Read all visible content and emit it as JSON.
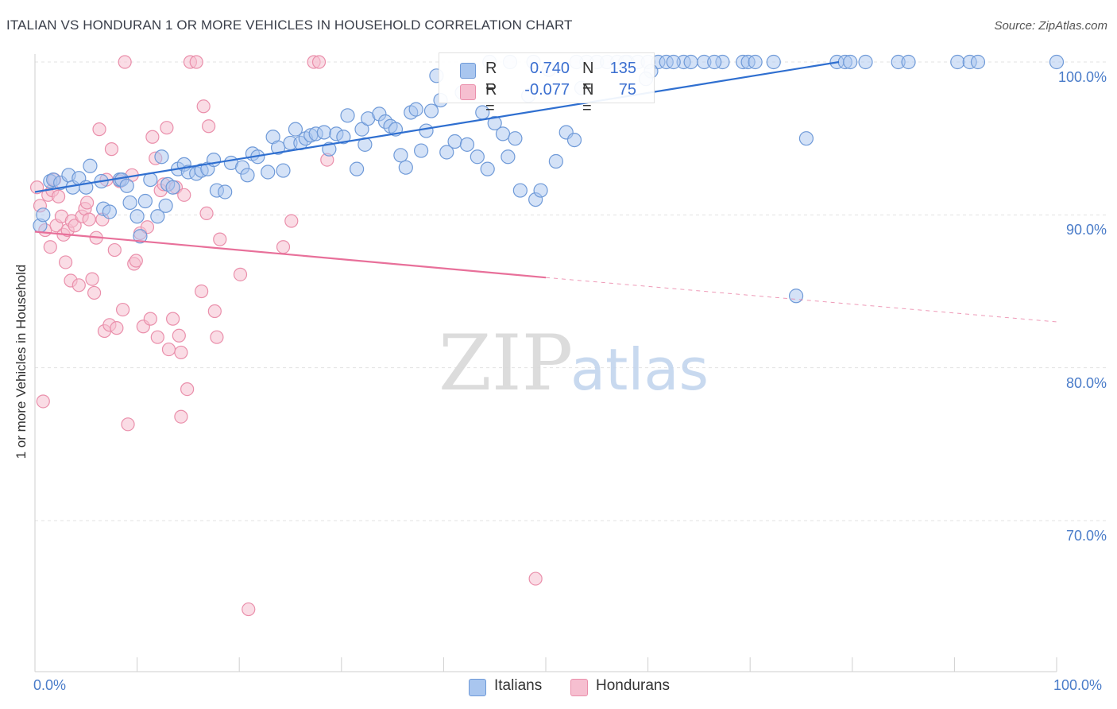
{
  "header": {
    "title": "ITALIAN VS HONDURAN 1 OR MORE VEHICLES IN HOUSEHOLD CORRELATION CHART",
    "source": "Source: ZipAtlas.com"
  },
  "watermark": {
    "zip": "ZIP",
    "atlas": "atlas"
  },
  "colors": {
    "italian_fill": "#a9c6ef",
    "italian_stroke": "#6f9ad8",
    "italian_line": "#2f6fd0",
    "honduran_fill": "#f6bfd0",
    "honduran_stroke": "#ea8fab",
    "honduran_line": "#e8709a",
    "grid": "#e3e3e3",
    "axis_text": "#4a7cc9"
  },
  "stats": {
    "italian": {
      "r_label": "R =",
      "r_value": "0.740",
      "n_label": "N =",
      "n_value": "135"
    },
    "honduran": {
      "r_label": "R =",
      "r_value": "-0.077",
      "n_label": "N =",
      "n_value": "75"
    }
  },
  "legend": {
    "italians": "Italians",
    "hondurans": "Hondurans"
  },
  "chart_data": {
    "type": "scatter",
    "title": "ITALIAN VS HONDURAN 1 OR MORE VEHICLES IN HOUSEHOLD CORRELATION CHART",
    "xlabel": "",
    "ylabel": "1 or more Vehicles in Household",
    "xlim": [
      0,
      100
    ],
    "ylim": [
      61,
      101.5
    ],
    "x_tick_labels": [
      "0.0%",
      "100.0%"
    ],
    "y_ticks": [
      70,
      80,
      90,
      100
    ],
    "y_tick_labels": [
      "70.0%",
      "80.0%",
      "90.0%",
      "100.0%"
    ],
    "grid": true,
    "legend_position": "bottom-center",
    "series": [
      {
        "name": "Italians",
        "trend": {
          "x": [
            0,
            78.7
          ],
          "y": [
            91.5,
            100.0
          ]
        },
        "points": [
          [
            0.5,
            89.3
          ],
          [
            0.8,
            90.0
          ],
          [
            1.5,
            92.2
          ],
          [
            1.8,
            92.3
          ],
          [
            2.5,
            92.1
          ],
          [
            3.3,
            92.6
          ],
          [
            3.7,
            91.8
          ],
          [
            4.3,
            92.4
          ],
          [
            5.0,
            91.8
          ],
          [
            5.4,
            93.2
          ],
          [
            6.5,
            92.2
          ],
          [
            6.7,
            90.4
          ],
          [
            7.3,
            90.2
          ],
          [
            8.3,
            92.3
          ],
          [
            8.5,
            92.3
          ],
          [
            9.0,
            91.9
          ],
          [
            9.3,
            90.8
          ],
          [
            10.0,
            89.9
          ],
          [
            10.3,
            88.6
          ],
          [
            10.8,
            90.9
          ],
          [
            11.3,
            92.3
          ],
          [
            12.0,
            89.9
          ],
          [
            12.4,
            93.8
          ],
          [
            12.8,
            90.6
          ],
          [
            13.0,
            92.0
          ],
          [
            13.5,
            91.8
          ],
          [
            14.0,
            93.0
          ],
          [
            14.6,
            93.3
          ],
          [
            15.0,
            92.8
          ],
          [
            15.8,
            92.7
          ],
          [
            16.3,
            92.9
          ],
          [
            16.9,
            93.0
          ],
          [
            17.5,
            93.6
          ],
          [
            17.8,
            91.6
          ],
          [
            18.6,
            91.5
          ],
          [
            19.2,
            93.4
          ],
          [
            20.3,
            93.1
          ],
          [
            20.8,
            92.6
          ],
          [
            21.3,
            94.0
          ],
          [
            21.8,
            93.8
          ],
          [
            22.8,
            92.8
          ],
          [
            23.3,
            95.1
          ],
          [
            23.8,
            94.4
          ],
          [
            24.3,
            92.9
          ],
          [
            25.0,
            94.7
          ],
          [
            25.5,
            95.6
          ],
          [
            26.0,
            94.7
          ],
          [
            26.5,
            95.0
          ],
          [
            27.0,
            95.2
          ],
          [
            27.5,
            95.3
          ],
          [
            28.3,
            95.4
          ],
          [
            28.8,
            94.3
          ],
          [
            29.5,
            95.3
          ],
          [
            30.2,
            95.1
          ],
          [
            30.6,
            96.5
          ],
          [
            31.5,
            93.0
          ],
          [
            32.0,
            95.6
          ],
          [
            32.3,
            94.6
          ],
          [
            32.6,
            96.3
          ],
          [
            33.7,
            96.6
          ],
          [
            34.3,
            96.1
          ],
          [
            34.8,
            95.8
          ],
          [
            35.3,
            95.6
          ],
          [
            35.8,
            93.9
          ],
          [
            36.3,
            93.1
          ],
          [
            36.8,
            96.7
          ],
          [
            37.3,
            96.9
          ],
          [
            37.8,
            94.2
          ],
          [
            38.3,
            95.5
          ],
          [
            38.8,
            96.8
          ],
          [
            39.3,
            99.1
          ],
          [
            39.7,
            97.5
          ],
          [
            40.3,
            94.1
          ],
          [
            41.1,
            94.8
          ],
          [
            41.8,
            98.0
          ],
          [
            42.3,
            94.6
          ],
          [
            43.3,
            93.8
          ],
          [
            43.8,
            96.7
          ],
          [
            44.3,
            93.0
          ],
          [
            45.0,
            96.0
          ],
          [
            45.8,
            95.3
          ],
          [
            46.3,
            93.8
          ],
          [
            47.0,
            95.0
          ],
          [
            47.5,
            91.6
          ],
          [
            48.3,
            97.8
          ],
          [
            48.8,
            100.0
          ],
          [
            49.0,
            91.0
          ],
          [
            49.5,
            91.6
          ],
          [
            50.3,
            99.5
          ],
          [
            51.0,
            93.5
          ],
          [
            52.0,
            95.4
          ],
          [
            52.8,
            94.9
          ],
          [
            53.5,
            98.3
          ],
          [
            54.0,
            100.0
          ],
          [
            55.0,
            100.0
          ],
          [
            56.0,
            100.0
          ],
          [
            57.0,
            100.0
          ],
          [
            58.0,
            100.0
          ],
          [
            59.0,
            100.0
          ],
          [
            60.0,
            100.0
          ],
          [
            61.0,
            100.0
          ],
          [
            61.8,
            100.0
          ],
          [
            63.5,
            100.0
          ],
          [
            64.2,
            100.0
          ],
          [
            65.5,
            100.0
          ],
          [
            67.3,
            100.0
          ],
          [
            69.3,
            100.0
          ],
          [
            69.8,
            100.0
          ],
          [
            70.5,
            100.0
          ],
          [
            72.3,
            100.0
          ],
          [
            74.5,
            84.7
          ],
          [
            75.5,
            95.0
          ],
          [
            78.5,
            100.0
          ],
          [
            79.3,
            100.0
          ],
          [
            81.3,
            100.0
          ],
          [
            84.5,
            100.0
          ],
          [
            85.5,
            100.0
          ],
          [
            90.3,
            100.0
          ],
          [
            91.5,
            100.0
          ],
          [
            92.3,
            100.0
          ],
          [
            100.0,
            100.0
          ],
          [
            60.3,
            99.4
          ],
          [
            59.8,
            98.9
          ],
          [
            66.5,
            100.0
          ],
          [
            79.8,
            100.0
          ],
          [
            44.5,
            100.0
          ],
          [
            46.5,
            100.0
          ],
          [
            53.0,
            100.0
          ],
          [
            57.8,
            100.0
          ],
          [
            62.5,
            100.0
          ]
        ]
      },
      {
        "name": "Hondurans",
        "trend": {
          "x": [
            0,
            50
          ],
          "y": [
            88.9,
            85.9
          ]
        },
        "trend_extension": {
          "x": [
            50,
            100
          ],
          "y": [
            85.9,
            83.0
          ]
        },
        "points": [
          [
            0.2,
            91.8
          ],
          [
            0.5,
            90.6
          ],
          [
            0.8,
            77.8
          ],
          [
            1.0,
            89.0
          ],
          [
            1.3,
            91.3
          ],
          [
            1.5,
            87.9
          ],
          [
            1.7,
            91.6
          ],
          [
            1.9,
            92.3
          ],
          [
            2.1,
            89.3
          ],
          [
            2.3,
            91.2
          ],
          [
            2.6,
            89.9
          ],
          [
            2.8,
            88.7
          ],
          [
            3.0,
            86.9
          ],
          [
            3.2,
            89.0
          ],
          [
            3.5,
            85.7
          ],
          [
            3.6,
            89.6
          ],
          [
            3.9,
            89.3
          ],
          [
            4.3,
            85.4
          ],
          [
            4.6,
            89.9
          ],
          [
            4.9,
            90.4
          ],
          [
            5.1,
            90.8
          ],
          [
            5.3,
            89.7
          ],
          [
            5.6,
            85.8
          ],
          [
            5.8,
            84.9
          ],
          [
            6.0,
            88.5
          ],
          [
            6.3,
            95.6
          ],
          [
            6.6,
            89.7
          ],
          [
            6.8,
            82.4
          ],
          [
            7.0,
            92.3
          ],
          [
            7.3,
            82.8
          ],
          [
            7.5,
            94.3
          ],
          [
            7.8,
            87.7
          ],
          [
            8.0,
            82.6
          ],
          [
            8.3,
            92.2
          ],
          [
            8.6,
            83.8
          ],
          [
            8.8,
            100.0
          ],
          [
            9.1,
            76.3
          ],
          [
            9.5,
            92.6
          ],
          [
            9.7,
            86.8
          ],
          [
            9.9,
            87.0
          ],
          [
            10.3,
            88.8
          ],
          [
            10.6,
            82.7
          ],
          [
            11.0,
            89.2
          ],
          [
            11.3,
            83.2
          ],
          [
            11.5,
            95.1
          ],
          [
            11.8,
            93.7
          ],
          [
            12.0,
            82.0
          ],
          [
            12.3,
            91.6
          ],
          [
            12.6,
            92.0
          ],
          [
            12.9,
            95.7
          ],
          [
            13.1,
            81.2
          ],
          [
            13.5,
            83.2
          ],
          [
            13.8,
            91.8
          ],
          [
            14.1,
            82.1
          ],
          [
            14.3,
            81.0
          ],
          [
            14.6,
            91.3
          ],
          [
            14.9,
            78.6
          ],
          [
            14.3,
            76.8
          ],
          [
            15.2,
            100.0
          ],
          [
            15.8,
            100.0
          ],
          [
            16.3,
            85.0
          ],
          [
            16.5,
            97.1
          ],
          [
            16.8,
            90.1
          ],
          [
            17.0,
            95.8
          ],
          [
            17.6,
            83.7
          ],
          [
            17.8,
            82.0
          ],
          [
            18.1,
            88.4
          ],
          [
            20.1,
            86.1
          ],
          [
            20.9,
            64.2
          ],
          [
            24.3,
            87.9
          ],
          [
            25.1,
            89.6
          ],
          [
            27.3,
            100.0
          ],
          [
            27.8,
            100.0
          ],
          [
            28.6,
            93.6
          ],
          [
            49.0,
            66.2
          ]
        ]
      }
    ]
  },
  "yaxis_title": "1 or more Vehicles in Household"
}
